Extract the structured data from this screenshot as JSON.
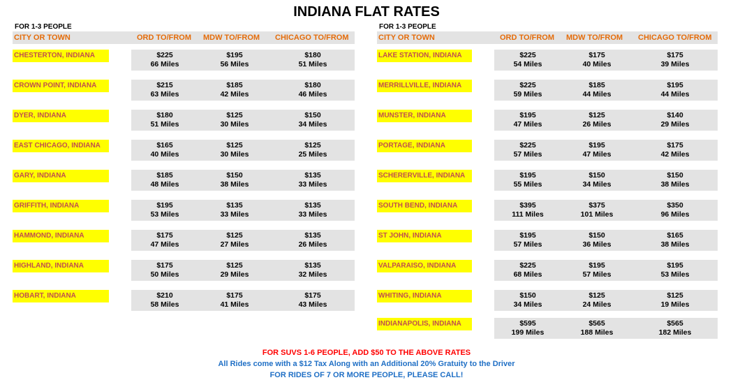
{
  "title": "INDIANA FLAT RATES",
  "left": {
    "subtitle": "FOR 1-3 PEOPLE",
    "headers": [
      "CITY OR TOWN",
      "ORD TO/FROM",
      "MDW TO/FROM",
      "CHICAGO TO/FROM"
    ],
    "rows": [
      {
        "city": "CHESTERTON, INDIANA",
        "ord": "$225",
        "ord_mi": "66 Miles",
        "mdw": "$195",
        "mdw_mi": "56 Miles",
        "chi": "$180",
        "chi_mi": "51 Miles"
      },
      {
        "city": "CROWN POINT, INDIANA",
        "ord": "$215",
        "ord_mi": "63 Miles",
        "mdw": "$185",
        "mdw_mi": "42 Miles",
        "chi": "$180",
        "chi_mi": "46 Miles"
      },
      {
        "city": "DYER, INDIANA",
        "ord": "$180",
        "ord_mi": "51 Miles",
        "mdw": "$125",
        "mdw_mi": "30 Miles",
        "chi": "$150",
        "chi_mi": "34 Miles"
      },
      {
        "city": "EAST CHICAGO, INDIANA",
        "ord": "$165",
        "ord_mi": "40 Miles",
        "mdw": "$125",
        "mdw_mi": "30 Miles",
        "chi": "$125",
        "chi_mi": "25 Miles"
      },
      {
        "city": "GARY, INDIANA",
        "ord": "$185",
        "ord_mi": "48 Miles",
        "mdw": "$150",
        "mdw_mi": "38 Miles",
        "chi": "$135",
        "chi_mi": "33 Miles"
      },
      {
        "city": "GRIFFITH, INDIANA",
        "ord": "$195",
        "ord_mi": "53 Miles",
        "mdw": "$135",
        "mdw_mi": "33 Miles",
        "chi": "$135",
        "chi_mi": "33 Miles"
      },
      {
        "city": "HAMMOND, INDIANA",
        "ord": "$175",
        "ord_mi": "47 Miles",
        "mdw": "$125",
        "mdw_mi": "27 Miles",
        "chi": "$135",
        "chi_mi": "26 Miles"
      },
      {
        "city": "HIGHLAND, INDIANA",
        "ord": "$175",
        "ord_mi": "50 Miles",
        "mdw": "$125",
        "mdw_mi": "29 Miles",
        "chi": "$135",
        "chi_mi": "32 Miles"
      },
      {
        "city": "HOBART, INDIANA",
        "ord": "$210",
        "ord_mi": "58 Miles",
        "mdw": "$175",
        "mdw_mi": "41 Miles",
        "chi": "$175",
        "chi_mi": "43 Miles"
      }
    ]
  },
  "right": {
    "subtitle": "FOR 1-3 PEOPLE",
    "headers": [
      "CITY OR TOWN",
      "ORD TO/FROM",
      "MDW TO/FROM",
      "CHICAGO TO/FROM"
    ],
    "rows": [
      {
        "city": "LAKE STATION, INDIANA",
        "ord": "$225",
        "ord_mi": "54 Miles",
        "mdw": "$175",
        "mdw_mi": "40 Miles",
        "chi": "$175",
        "chi_mi": "39 Miles"
      },
      {
        "city": "MERRILLVILLE, INDIANA",
        "ord": "$225",
        "ord_mi": "59 Miles",
        "mdw": "$185",
        "mdw_mi": "44 Miles",
        "chi": "$195",
        "chi_mi": "44 Miles"
      },
      {
        "city": "MUNSTER, INDIANA",
        "ord": "$195",
        "ord_mi": "47 Miles",
        "mdw": "$125",
        "mdw_mi": "26 Miles",
        "chi": "$140",
        "chi_mi": "29 Miles"
      },
      {
        "city": "PORTAGE, INDIANA",
        "ord": "$225",
        "ord_mi": "57 Miles",
        "mdw": "$195",
        "mdw_mi": "47 Miles",
        "chi": "$175",
        "chi_mi": "42 Miles"
      },
      {
        "city": "SCHERERVILLE, INDIANA",
        "ord": "$195",
        "ord_mi": "55 Miles",
        "mdw": "$150",
        "mdw_mi": "34 Miles",
        "chi": "$150",
        "chi_mi": "38 Miles"
      },
      {
        "city": "SOUTH BEND, INDIANA",
        "ord": "$395",
        "ord_mi": "111 Miles",
        "mdw": "$375",
        "mdw_mi": "101 Miles",
        "chi": "$350",
        "chi_mi": "96 Miles"
      },
      {
        "city": "ST JOHN, INDIANA",
        "ord": "$195",
        "ord_mi": "57 Miles",
        "mdw": "$150",
        "mdw_mi": "36 Miles",
        "chi": "$165",
        "chi_mi": "38 Miles"
      },
      {
        "city": "VALPARAISO, INDIANA",
        "ord": "$225",
        "ord_mi": "68 Miles",
        "mdw": "$195",
        "mdw_mi": "57 Miles",
        "chi": "$195",
        "chi_mi": "53 Miles"
      },
      {
        "city": "WHITING, INDIANA",
        "ord": "$150",
        "ord_mi": "34 Miles",
        "mdw": "$125",
        "mdw_mi": "24 Miles",
        "chi": "$125",
        "chi_mi": "19 Miles"
      },
      {
        "city": "INDIANAPOLIS, INDIANA",
        "ord": "$595",
        "ord_mi": "199 Miles",
        "mdw": "$565",
        "mdw_mi": "188 Miles",
        "chi": "$565",
        "chi_mi": "182 Miles"
      }
    ]
  },
  "footer": {
    "line1": "FOR SUVS 1-6 PEOPLE, ADD $50 TO THE ABOVE RATES",
    "line2": "All Rides come with a $12 Tax Along with an Additional 20% Gratuity to the Driver",
    "line3": "FOR RIDES OF 7 OR MORE PEOPLE, PLEASE CALL!"
  },
  "colors": {
    "header_text": "#e46c0a",
    "city_bg": "#ffff00",
    "city_text": "#c0504d",
    "row_bg": "#e3e3e3",
    "footer_red": "#ff0000",
    "footer_blue": "#1f6fc5"
  }
}
